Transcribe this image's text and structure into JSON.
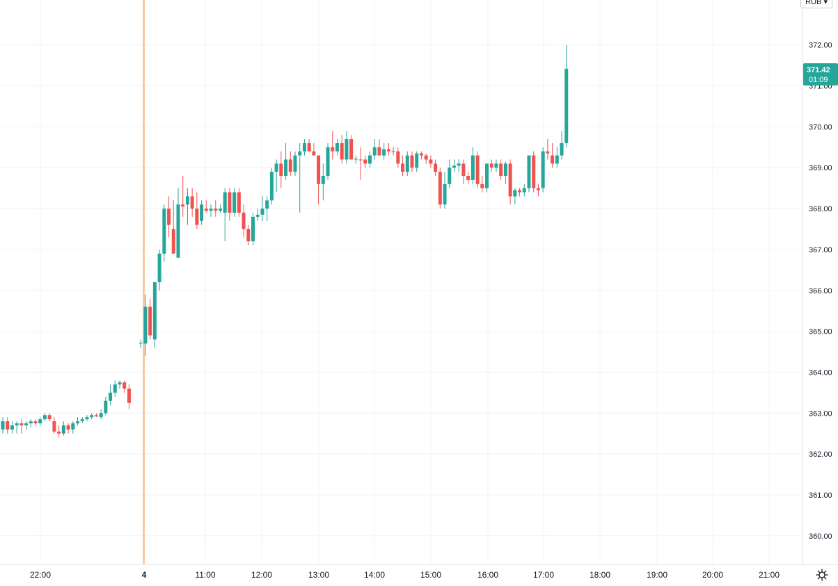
{
  "toolbar": {
    "currency_label": "RUB",
    "currency_caret": "▾",
    "settings_icon": "gear-icon"
  },
  "price_badge": {
    "price": "371.42",
    "countdown": "01:09"
  },
  "colors": {
    "up": "#26a69a",
    "down": "#ef5350",
    "grid": "#f0f3fa",
    "axis_text": "#131722",
    "session_marker": "#f8c9a0",
    "badge_bg": "#26a69a",
    "badge_text": "#ffffff"
  },
  "chart_data": {
    "type": "candlestick",
    "interval_minutes": 5,
    "ylim": [
      359.3,
      373.1
    ],
    "y_ticks": [
      "360.00",
      "361.00",
      "362.00",
      "363.00",
      "364.00",
      "365.00",
      "366.00",
      "367.00",
      "368.00",
      "369.00",
      "370.00",
      "371.00",
      "372.00"
    ],
    "x_ticks": [
      "22:00",
      "4",
      "11:00",
      "12:00",
      "13:00",
      "14:00",
      "15:00",
      "16:00",
      "17:00",
      "18:00",
      "19:00",
      "20:00",
      "21:00"
    ],
    "session_break": "4",
    "grid": true,
    "last_price": 371.42,
    "candles": [
      {
        "o": 362.6,
        "h": 362.9,
        "l": 362.5,
        "c": 362.8
      },
      {
        "o": 362.8,
        "h": 362.9,
        "l": 362.5,
        "c": 362.6
      },
      {
        "o": 362.6,
        "h": 362.8,
        "l": 362.5,
        "c": 362.7
      },
      {
        "o": 362.7,
        "h": 362.8,
        "l": 362.5,
        "c": 362.75
      },
      {
        "o": 362.75,
        "h": 362.85,
        "l": 362.5,
        "c": 362.7
      },
      {
        "o": 362.7,
        "h": 362.8,
        "l": 362.6,
        "c": 362.75
      },
      {
        "o": 362.75,
        "h": 362.85,
        "l": 362.65,
        "c": 362.8
      },
      {
        "o": 362.8,
        "h": 362.85,
        "l": 362.7,
        "c": 362.75
      },
      {
        "o": 362.75,
        "h": 362.9,
        "l": 362.7,
        "c": 362.85
      },
      {
        "o": 362.85,
        "h": 363.0,
        "l": 362.8,
        "c": 362.95
      },
      {
        "o": 362.95,
        "h": 363.0,
        "l": 362.8,
        "c": 362.85
      },
      {
        "o": 362.8,
        "h": 362.9,
        "l": 362.5,
        "c": 362.55
      },
      {
        "o": 362.55,
        "h": 362.7,
        "l": 362.4,
        "c": 362.5
      },
      {
        "o": 362.5,
        "h": 362.8,
        "l": 362.45,
        "c": 362.7
      },
      {
        "o": 362.7,
        "h": 362.75,
        "l": 362.5,
        "c": 362.6
      },
      {
        "o": 362.6,
        "h": 362.8,
        "l": 362.5,
        "c": 362.75
      },
      {
        "o": 362.75,
        "h": 362.9,
        "l": 362.7,
        "c": 362.8
      },
      {
        "o": 362.8,
        "h": 362.9,
        "l": 362.75,
        "c": 362.85
      },
      {
        "o": 362.85,
        "h": 362.95,
        "l": 362.8,
        "c": 362.9
      },
      {
        "o": 362.9,
        "h": 363.0,
        "l": 362.85,
        "c": 362.95
      },
      {
        "o": 362.95,
        "h": 363.0,
        "l": 362.9,
        "c": 362.92
      },
      {
        "o": 362.9,
        "h": 363.1,
        "l": 362.85,
        "c": 363.0
      },
      {
        "o": 363.0,
        "h": 363.4,
        "l": 362.95,
        "c": 363.3
      },
      {
        "o": 363.3,
        "h": 363.7,
        "l": 363.2,
        "c": 363.5
      },
      {
        "o": 363.5,
        "h": 363.8,
        "l": 363.4,
        "c": 363.7
      },
      {
        "o": 363.7,
        "h": 363.8,
        "l": 363.6,
        "c": 363.75
      },
      {
        "o": 363.75,
        "h": 363.8,
        "l": 363.5,
        "c": 363.6
      },
      {
        "o": 363.6,
        "h": 363.7,
        "l": 363.1,
        "c": 363.25
      },
      {
        "o": 364.7,
        "h": 364.8,
        "l": 364.6,
        "c": 364.72
      },
      {
        "o": 364.7,
        "h": 365.9,
        "l": 364.4,
        "c": 365.6
      },
      {
        "o": 365.6,
        "h": 365.8,
        "l": 364.8,
        "c": 364.9
      },
      {
        "o": 364.8,
        "h": 366.2,
        "l": 364.6,
        "c": 366.2
      },
      {
        "o": 366.2,
        "h": 367.0,
        "l": 366.0,
        "c": 366.9
      },
      {
        "o": 366.9,
        "h": 368.1,
        "l": 366.7,
        "c": 368.0
      },
      {
        "o": 368.0,
        "h": 368.3,
        "l": 367.3,
        "c": 367.6
      },
      {
        "o": 367.5,
        "h": 368.2,
        "l": 366.9,
        "c": 366.9
      },
      {
        "o": 366.8,
        "h": 368.5,
        "l": 366.8,
        "c": 368.1
      },
      {
        "o": 368.1,
        "h": 368.8,
        "l": 367.8,
        "c": 368.05
      },
      {
        "o": 368.1,
        "h": 368.5,
        "l": 367.6,
        "c": 368.3
      },
      {
        "o": 368.3,
        "h": 368.5,
        "l": 367.8,
        "c": 368.0
      },
      {
        "o": 368.0,
        "h": 368.4,
        "l": 367.5,
        "c": 367.6
      },
      {
        "o": 367.7,
        "h": 368.2,
        "l": 367.6,
        "c": 368.1
      },
      {
        "o": 368.0,
        "h": 368.2,
        "l": 367.9,
        "c": 367.95
      },
      {
        "o": 367.95,
        "h": 368.1,
        "l": 367.8,
        "c": 368.0
      },
      {
        "o": 368.0,
        "h": 368.2,
        "l": 367.8,
        "c": 367.95
      },
      {
        "o": 367.95,
        "h": 368.1,
        "l": 367.9,
        "c": 368.0
      },
      {
        "o": 367.9,
        "h": 368.5,
        "l": 367.2,
        "c": 368.4
      },
      {
        "o": 368.4,
        "h": 368.5,
        "l": 367.7,
        "c": 367.9
      },
      {
        "o": 367.9,
        "h": 368.5,
        "l": 367.8,
        "c": 368.4
      },
      {
        "o": 368.4,
        "h": 368.5,
        "l": 367.8,
        "c": 367.9
      },
      {
        "o": 367.9,
        "h": 368.1,
        "l": 367.3,
        "c": 367.5
      },
      {
        "o": 367.5,
        "h": 367.6,
        "l": 367.1,
        "c": 367.2
      },
      {
        "o": 367.2,
        "h": 367.9,
        "l": 367.1,
        "c": 367.8
      },
      {
        "o": 367.8,
        "h": 368.0,
        "l": 367.7,
        "c": 367.85
      },
      {
        "o": 367.85,
        "h": 368.3,
        "l": 367.7,
        "c": 368.0
      },
      {
        "o": 368.0,
        "h": 368.3,
        "l": 367.7,
        "c": 368.2
      },
      {
        "o": 368.2,
        "h": 369.0,
        "l": 368.1,
        "c": 368.9
      },
      {
        "o": 368.9,
        "h": 369.2,
        "l": 368.4,
        "c": 369.1
      },
      {
        "o": 369.1,
        "h": 369.4,
        "l": 368.5,
        "c": 368.8
      },
      {
        "o": 368.8,
        "h": 369.6,
        "l": 368.7,
        "c": 369.2
      },
      {
        "o": 369.2,
        "h": 369.4,
        "l": 368.8,
        "c": 368.9
      },
      {
        "o": 368.9,
        "h": 369.4,
        "l": 368.8,
        "c": 369.3
      },
      {
        "o": 369.3,
        "h": 369.6,
        "l": 367.9,
        "c": 369.4
      },
      {
        "o": 369.4,
        "h": 369.7,
        "l": 369.3,
        "c": 369.6
      },
      {
        "o": 369.6,
        "h": 369.7,
        "l": 369.4,
        "c": 369.4
      },
      {
        "o": 369.4,
        "h": 369.6,
        "l": 369.3,
        "c": 369.3
      },
      {
        "o": 369.3,
        "h": 369.3,
        "l": 368.1,
        "c": 368.6
      },
      {
        "o": 368.6,
        "h": 369.1,
        "l": 368.2,
        "c": 368.8
      },
      {
        "o": 368.8,
        "h": 369.6,
        "l": 368.7,
        "c": 369.5
      },
      {
        "o": 369.5,
        "h": 369.9,
        "l": 369.2,
        "c": 369.4
      },
      {
        "o": 369.4,
        "h": 369.7,
        "l": 369.3,
        "c": 369.6
      },
      {
        "o": 369.6,
        "h": 369.8,
        "l": 369.1,
        "c": 369.2
      },
      {
        "o": 369.2,
        "h": 369.9,
        "l": 369.1,
        "c": 369.7
      },
      {
        "o": 369.7,
        "h": 369.8,
        "l": 369.2,
        "c": 369.2
      },
      {
        "o": 369.2,
        "h": 369.3,
        "l": 369.1,
        "c": 369.22
      },
      {
        "o": 369.2,
        "h": 369.5,
        "l": 368.7,
        "c": 369.18
      },
      {
        "o": 369.2,
        "h": 369.3,
        "l": 369.0,
        "c": 369.1
      },
      {
        "o": 369.1,
        "h": 369.4,
        "l": 369.0,
        "c": 369.3
      },
      {
        "o": 369.3,
        "h": 369.7,
        "l": 369.2,
        "c": 369.5
      },
      {
        "o": 369.5,
        "h": 369.7,
        "l": 369.3,
        "c": 369.3
      },
      {
        "o": 369.3,
        "h": 369.6,
        "l": 369.2,
        "c": 369.45
      },
      {
        "o": 369.45,
        "h": 369.6,
        "l": 369.3,
        "c": 369.4
      },
      {
        "o": 369.4,
        "h": 369.5,
        "l": 369.3,
        "c": 369.38
      },
      {
        "o": 369.4,
        "h": 369.5,
        "l": 369.0,
        "c": 369.1
      },
      {
        "o": 369.1,
        "h": 369.3,
        "l": 368.8,
        "c": 368.9
      },
      {
        "o": 368.9,
        "h": 369.4,
        "l": 368.8,
        "c": 369.3
      },
      {
        "o": 369.3,
        "h": 369.4,
        "l": 368.9,
        "c": 369.0
      },
      {
        "o": 369.0,
        "h": 369.4,
        "l": 368.9,
        "c": 369.35
      },
      {
        "o": 369.35,
        "h": 369.4,
        "l": 369.2,
        "c": 369.3
      },
      {
        "o": 369.3,
        "h": 369.35,
        "l": 369.1,
        "c": 369.2
      },
      {
        "o": 369.2,
        "h": 369.3,
        "l": 369.0,
        "c": 369.1
      },
      {
        "o": 369.1,
        "h": 369.2,
        "l": 368.8,
        "c": 368.9
      },
      {
        "o": 368.9,
        "h": 369.0,
        "l": 368.0,
        "c": 368.1
      },
      {
        "o": 368.1,
        "h": 368.9,
        "l": 368.0,
        "c": 368.6
      },
      {
        "o": 368.6,
        "h": 369.2,
        "l": 368.5,
        "c": 369.0
      },
      {
        "o": 369.0,
        "h": 369.2,
        "l": 368.9,
        "c": 369.05
      },
      {
        "o": 369.05,
        "h": 369.2,
        "l": 368.9,
        "c": 369.1
      },
      {
        "o": 369.1,
        "h": 369.2,
        "l": 368.6,
        "c": 368.8
      },
      {
        "o": 368.8,
        "h": 368.9,
        "l": 368.6,
        "c": 368.7
      },
      {
        "o": 368.7,
        "h": 369.5,
        "l": 368.6,
        "c": 369.3
      },
      {
        "o": 369.3,
        "h": 369.4,
        "l": 368.5,
        "c": 368.6
      },
      {
        "o": 368.6,
        "h": 368.8,
        "l": 368.4,
        "c": 368.5
      },
      {
        "o": 368.5,
        "h": 369.1,
        "l": 368.4,
        "c": 369.1
      },
      {
        "o": 369.1,
        "h": 369.2,
        "l": 368.9,
        "c": 369.0
      },
      {
        "o": 369.0,
        "h": 369.2,
        "l": 368.9,
        "c": 369.1
      },
      {
        "o": 369.1,
        "h": 369.2,
        "l": 368.7,
        "c": 368.8
      },
      {
        "o": 368.8,
        "h": 369.15,
        "l": 368.6,
        "c": 369.1
      },
      {
        "o": 369.1,
        "h": 369.2,
        "l": 368.1,
        "c": 368.3
      },
      {
        "o": 368.3,
        "h": 368.5,
        "l": 368.1,
        "c": 368.45
      },
      {
        "o": 368.45,
        "h": 368.5,
        "l": 368.3,
        "c": 368.4
      },
      {
        "o": 368.4,
        "h": 368.6,
        "l": 368.3,
        "c": 368.5
      },
      {
        "o": 368.5,
        "h": 369.3,
        "l": 368.4,
        "c": 369.3
      },
      {
        "o": 369.3,
        "h": 369.4,
        "l": 368.4,
        "c": 368.5
      },
      {
        "o": 368.5,
        "h": 368.6,
        "l": 368.3,
        "c": 368.45
      },
      {
        "o": 368.5,
        "h": 369.5,
        "l": 368.4,
        "c": 369.4
      },
      {
        "o": 369.4,
        "h": 369.7,
        "l": 369.2,
        "c": 369.35
      },
      {
        "o": 369.3,
        "h": 369.6,
        "l": 369.0,
        "c": 369.1
      },
      {
        "o": 369.1,
        "h": 369.5,
        "l": 369.0,
        "c": 369.3
      },
      {
        "o": 369.3,
        "h": 369.9,
        "l": 369.2,
        "c": 369.6
      },
      {
        "o": 369.6,
        "h": 372.0,
        "l": 369.5,
        "c": 371.42
      }
    ]
  }
}
